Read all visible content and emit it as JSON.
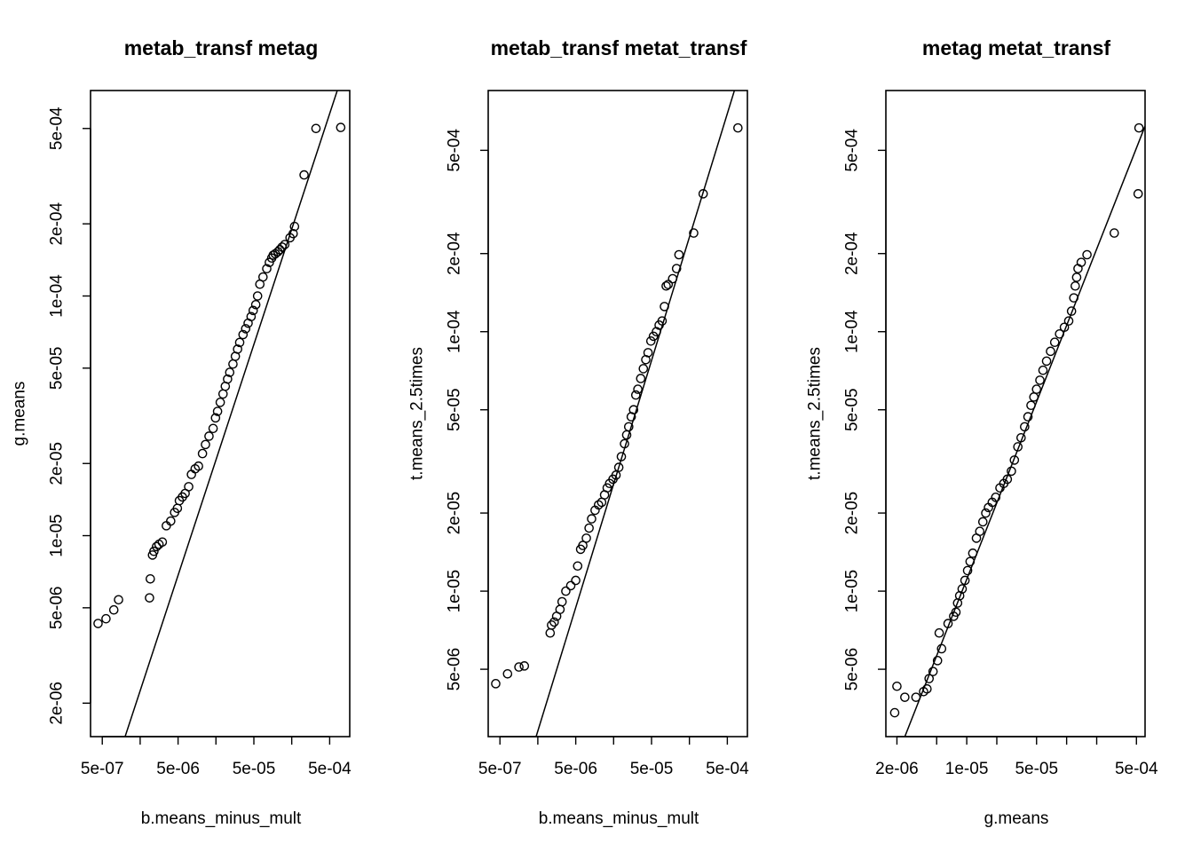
{
  "chart_data": [
    {
      "type": "scatter",
      "title": "metab_transf metag",
      "xlabel": "b.means_minus_mult",
      "ylabel": "g.means",
      "log_x": true,
      "log_y": true,
      "grid": false,
      "xlim": [
        3.5e-07,
        0.00092
      ],
      "ylim": [
        1.45e-06,
        0.00072
      ],
      "x_ticks": [
        5e-07,
        1.58e-06,
        5e-06,
        1.58e-05,
        5e-05,
        0.000158,
        0.0005
      ],
      "x_tick_labels": [
        "5e-07",
        "",
        "5e-06",
        "",
        "5e-05",
        "",
        "5e-04"
      ],
      "y_ticks": [
        2e-06,
        5e-06,
        1e-05,
        2e-05,
        5e-05,
        0.0001,
        0.0002,
        0.0005
      ],
      "y_tick_labels": [
        "2e-06",
        "5e-06",
        "1e-05",
        "2e-05",
        "5e-05",
        "1e-04",
        "2e-04",
        "5e-04"
      ],
      "fit_line": {
        "x": [
          1e-06,
          0.00063
        ],
        "y": [
          1.45e-06,
          0.00072
        ]
      },
      "points": [
        [
          4.4e-07,
          4.3e-06
        ],
        [
          5.6e-07,
          4.5e-06
        ],
        [
          7.1e-07,
          4.9e-06
        ],
        [
          8.2e-07,
          5.4e-06
        ],
        [
          2.1e-06,
          5.5e-06
        ],
        [
          2.15e-06,
          6.6e-06
        ],
        [
          2.3e-06,
          8.3e-06
        ],
        [
          2.4e-06,
          8.6e-06
        ],
        [
          2.6e-06,
          9e-06
        ],
        [
          2.8e-06,
          9.2e-06
        ],
        [
          3.1e-06,
          9.4e-06
        ],
        [
          3.5e-06,
          1.1e-05
        ],
        [
          4e-06,
          1.15e-05
        ],
        [
          4.5e-06,
          1.25e-05
        ],
        [
          4.9e-06,
          1.3e-05
        ],
        [
          5.2e-06,
          1.4e-05
        ],
        [
          5.7e-06,
          1.45e-05
        ],
        [
          6.2e-06,
          1.5e-05
        ],
        [
          6.9e-06,
          1.6e-05
        ],
        [
          7.5e-06,
          1.8e-05
        ],
        [
          8.4e-06,
          1.9e-05
        ],
        [
          9.3e-06,
          1.95e-05
        ],
        [
          1.05e-05,
          2.2e-05
        ],
        [
          1.15e-05,
          2.4e-05
        ],
        [
          1.28e-05,
          2.6e-05
        ],
        [
          1.45e-05,
          2.8e-05
        ],
        [
          1.56e-05,
          3.1e-05
        ],
        [
          1.66e-05,
          3.3e-05
        ],
        [
          1.8e-05,
          3.6e-05
        ],
        [
          1.96e-05,
          3.9e-05
        ],
        [
          2.1e-05,
          4.2e-05
        ],
        [
          2.25e-05,
          4.5e-05
        ],
        [
          2.4e-05,
          4.8e-05
        ],
        [
          2.65e-05,
          5.2e-05
        ],
        [
          2.85e-05,
          5.6e-05
        ],
        [
          3.05e-05,
          6e-05
        ],
        [
          3.25e-05,
          6.4e-05
        ],
        [
          3.6e-05,
          6.9e-05
        ],
        [
          3.9e-05,
          7.3e-05
        ],
        [
          4.2e-05,
          7.7e-05
        ],
        [
          4.6e-05,
          8.2e-05
        ],
        [
          4.9e-05,
          8.7e-05
        ],
        [
          5.3e-05,
          9.2e-05
        ],
        [
          5.6e-05,
          0.0001
        ],
        [
          6e-05,
          0.000112
        ],
        [
          6.6e-05,
          0.00012
        ],
        [
          7.4e-05,
          0.00013
        ],
        [
          8e-05,
          0.000138
        ],
        [
          8.6e-05,
          0.000144
        ],
        [
          9e-05,
          0.000148
        ],
        [
          9.6e-05,
          0.00015
        ],
        [
          0.000104,
          0.000153
        ],
        [
          0.00011,
          0.000156
        ],
        [
          0.000118,
          0.00016
        ],
        [
          0.000128,
          0.000164
        ],
        [
          0.00015,
          0.000175
        ],
        [
          0.000165,
          0.000182
        ],
        [
          0.000172,
          0.000195
        ],
        [
          0.00023,
          0.00032
        ],
        [
          0.00033,
          0.0005
        ],
        [
          0.0007,
          0.000505
        ]
      ]
    },
    {
      "type": "scatter",
      "title": "metab_transf metat_transf",
      "xlabel": "b.means_minus_mult",
      "ylabel": "t.means_2.5times",
      "log_x": true,
      "log_y": true,
      "grid": false,
      "xlim": [
        3.5e-07,
        0.00092
      ],
      "ylim": [
        2.75e-06,
        0.00085
      ],
      "x_ticks": [
        5e-07,
        1.58e-06,
        5e-06,
        1.58e-05,
        5e-05,
        0.000158,
        0.0005
      ],
      "x_tick_labels": [
        "5e-07",
        "",
        "5e-06",
        "",
        "5e-05",
        "",
        "5e-04"
      ],
      "y_ticks": [
        5e-06,
        1e-05,
        2e-05,
        5e-05,
        0.0001,
        0.0002,
        0.0005
      ],
      "y_tick_labels": [
        "5e-06",
        "1e-05",
        "2e-05",
        "5e-05",
        "1e-04",
        "2e-04",
        "5e-04"
      ],
      "fit_line": {
        "x": [
          1.5e-06,
          0.00062
        ],
        "y": [
          2.75e-06,
          0.00085
        ]
      },
      "points": [
        [
          4.4e-07,
          4.4e-06
        ],
        [
          6.3e-07,
          4.8e-06
        ],
        [
          8.9e-07,
          5.1e-06
        ],
        [
          1.05e-06,
          5.15e-06
        ],
        [
          2.3e-06,
          6.9e-06
        ],
        [
          2.4e-06,
          7.4e-06
        ],
        [
          2.6e-06,
          7.6e-06
        ],
        [
          2.8e-06,
          8e-06
        ],
        [
          3.1e-06,
          8.5e-06
        ],
        [
          3.3e-06,
          9.1e-06
        ],
        [
          3.7e-06,
          1e-05
        ],
        [
          4.3e-06,
          1.05e-05
        ],
        [
          5e-06,
          1.1e-05
        ],
        [
          5.3e-06,
          1.25e-05
        ],
        [
          5.8e-06,
          1.45e-05
        ],
        [
          6.2e-06,
          1.5e-05
        ],
        [
          6.9e-06,
          1.6e-05
        ],
        [
          7.5e-06,
          1.75e-05
        ],
        [
          8.1e-06,
          1.9e-05
        ],
        [
          9e-06,
          2.05e-05
        ],
        [
          1e-05,
          2.15e-05
        ],
        [
          1.1e-05,
          2.2e-05
        ],
        [
          1.2e-05,
          2.35e-05
        ],
        [
          1.3e-05,
          2.5e-05
        ],
        [
          1.4e-05,
          2.6e-05
        ],
        [
          1.55e-05,
          2.7e-05
        ],
        [
          1.7e-05,
          2.8e-05
        ],
        [
          1.85e-05,
          3e-05
        ],
        [
          2e-05,
          3.3e-05
        ],
        [
          2.2e-05,
          3.7e-05
        ],
        [
          2.35e-05,
          4e-05
        ],
        [
          2.5e-05,
          4.3e-05
        ],
        [
          2.7e-05,
          4.7e-05
        ],
        [
          2.9e-05,
          5e-05
        ],
        [
          3.1e-05,
          5.7e-05
        ],
        [
          3.3e-05,
          6e-05
        ],
        [
          3.6e-05,
          6.6e-05
        ],
        [
          3.9e-05,
          7.2e-05
        ],
        [
          4.2e-05,
          7.8e-05
        ],
        [
          4.5e-05,
          8.3e-05
        ],
        [
          4.9e-05,
          9.2e-05
        ],
        [
          5.3e-05,
          9.6e-05
        ],
        [
          5.8e-05,
          0.0001
        ],
        [
          6.3e-05,
          0.000106
        ],
        [
          6.9e-05,
          0.00011
        ],
        [
          7.4e-05,
          0.000125
        ],
        [
          7.8e-05,
          0.00015
        ],
        [
          8.3e-05,
          0.000152
        ],
        [
          9.5e-05,
          0.00016
        ],
        [
          0.000107,
          0.000175
        ],
        [
          0.000115,
          0.000198
        ],
        [
          0.00018,
          0.00024
        ],
        [
          0.00024,
          0.00034
        ],
        [
          0.00069,
          0.00061
        ]
      ]
    },
    {
      "type": "scatter",
      "title": "metag metat_transf",
      "xlabel": "g.means",
      "ylabel": "t.means_2.5times",
      "log_x": true,
      "log_y": true,
      "grid": false,
      "xlim": [
        1.55e-06,
        0.00061
      ],
      "ylim": [
        2.75e-06,
        0.00085
      ],
      "x_ticks": [
        2e-06,
        5e-06,
        1e-05,
        2e-05,
        5e-05,
        0.0001,
        0.0002,
        0.0005
      ],
      "x_tick_labels": [
        "2e-06",
        "",
        "1e-05",
        "",
        "5e-05",
        "",
        "",
        "5e-04"
      ],
      "y_ticks": [
        5e-06,
        1e-05,
        2e-05,
        5e-05,
        0.0001,
        0.0002,
        0.0005
      ],
      "y_tick_labels": [
        "5e-06",
        "1e-05",
        "2e-05",
        "5e-05",
        "1e-04",
        "2e-04",
        "5e-04"
      ],
      "fit_line": {
        "x": [
          2.4e-06,
          0.00061
        ],
        "y": [
          2.75e-06,
          0.00062
        ]
      },
      "points": [
        [
          1.9e-06,
          3.4e-06
        ],
        [
          2e-06,
          4.3e-06
        ],
        [
          2.4e-06,
          3.9e-06
        ],
        [
          3.1e-06,
          3.9e-06
        ],
        [
          3.7e-06,
          4.1e-06
        ],
        [
          4e-06,
          4.2e-06
        ],
        [
          4.2e-06,
          4.6e-06
        ],
        [
          4.6e-06,
          4.9e-06
        ],
        [
          5.1e-06,
          5.4e-06
        ],
        [
          5.3e-06,
          6.9e-06
        ],
        [
          5.6e-06,
          6e-06
        ],
        [
          6.5e-06,
          7.5e-06
        ],
        [
          7.4e-06,
          8e-06
        ],
        [
          7.8e-06,
          8.3e-06
        ],
        [
          8.1e-06,
          9e-06
        ],
        [
          8.5e-06,
          9.6e-06
        ],
        [
          9e-06,
          1.02e-05
        ],
        [
          9.6e-06,
          1.1e-05
        ],
        [
          1.02e-05,
          1.2e-05
        ],
        [
          1.08e-05,
          1.3e-05
        ],
        [
          1.15e-05,
          1.4e-05
        ],
        [
          1.25e-05,
          1.6e-05
        ],
        [
          1.35e-05,
          1.7e-05
        ],
        [
          1.45e-05,
          1.85e-05
        ],
        [
          1.55e-05,
          2e-05
        ],
        [
          1.65e-05,
          2.1e-05
        ],
        [
          1.8e-05,
          2.2e-05
        ],
        [
          1.95e-05,
          2.3e-05
        ],
        [
          2.15e-05,
          2.5e-05
        ],
        [
          2.35e-05,
          2.6e-05
        ],
        [
          2.55e-05,
          2.7e-05
        ],
        [
          2.8e-05,
          2.9e-05
        ],
        [
          3e-05,
          3.2e-05
        ],
        [
          3.25e-05,
          3.6e-05
        ],
        [
          3.5e-05,
          3.9e-05
        ],
        [
          3.8e-05,
          4.3e-05
        ],
        [
          4.1e-05,
          4.7e-05
        ],
        [
          4.4e-05,
          5.2e-05
        ],
        [
          4.7e-05,
          5.6e-05
        ],
        [
          5e-05,
          6e-05
        ],
        [
          5.4e-05,
          6.5e-05
        ],
        [
          5.8e-05,
          7.1e-05
        ],
        [
          6.3e-05,
          7.7e-05
        ],
        [
          6.9e-05,
          8.4e-05
        ],
        [
          7.6e-05,
          9.1e-05
        ],
        [
          8.5e-05,
          9.8e-05
        ],
        [
          9.5e-05,
          0.000104
        ],
        [
          0.000105,
          0.00011
        ],
        [
          0.000112,
          0.00012
        ],
        [
          0.000118,
          0.000135
        ],
        [
          0.000122,
          0.00015
        ],
        [
          0.000126,
          0.000162
        ],
        [
          0.00013,
          0.000175
        ],
        [
          0.00014,
          0.000185
        ],
        [
          0.00016,
          0.000198
        ],
        [
          0.0003,
          0.00024
        ],
        [
          0.00052,
          0.00034
        ],
        [
          0.00053,
          0.00061
        ]
      ]
    }
  ]
}
